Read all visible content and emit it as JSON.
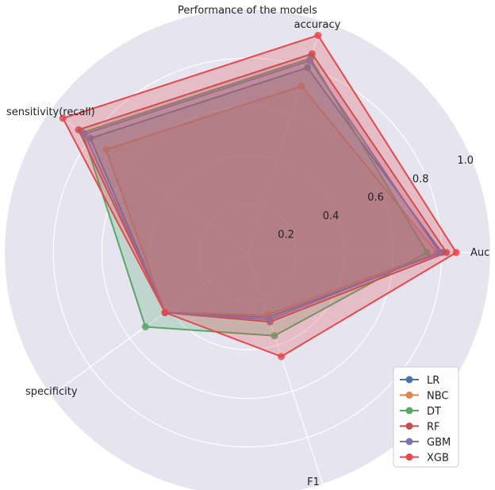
{
  "chart_data": {
    "type": "radar",
    "title": "Performance of the models",
    "axes": [
      "Auc",
      "accuracy",
      "sensitivity(recall)",
      "specificity",
      "F1"
    ],
    "radial_ticks": [
      "0.2",
      "0.4",
      "0.6",
      "0.8",
      "1.0"
    ],
    "rlim": [
      0,
      1.0
    ],
    "grid": true,
    "legend_position": "bottom-right",
    "series": [
      {
        "name": "LR",
        "color": "#4c72b0",
        "values": [
          0.8,
          0.8,
          0.8,
          0.42,
          0.28
        ]
      },
      {
        "name": "NBC",
        "color": "#dd8452",
        "values": [
          0.78,
          0.72,
          0.72,
          0.42,
          0.27
        ]
      },
      {
        "name": "DT",
        "color": "#55a868",
        "values": [
          0.74,
          0.84,
          0.84,
          0.52,
          0.36
        ]
      },
      {
        "name": "RF",
        "color": "#c44e52",
        "values": [
          0.82,
          0.86,
          0.86,
          0.42,
          0.3
        ]
      },
      {
        "name": "GBM",
        "color": "#8172b3",
        "values": [
          0.79,
          0.83,
          0.83,
          0.42,
          0.29
        ]
      },
      {
        "name": "XGB",
        "color": "#e8474c",
        "values": [
          0.86,
          0.94,
          0.94,
          0.42,
          0.45
        ]
      }
    ]
  }
}
